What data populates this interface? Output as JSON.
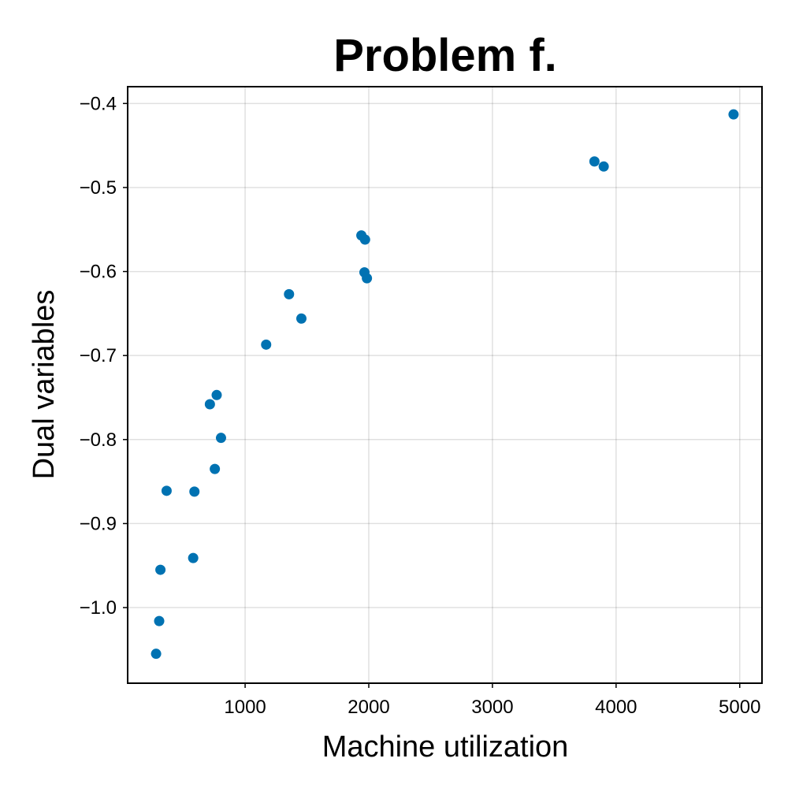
{
  "chart_data": {
    "type": "scatter",
    "title": "Problem f.",
    "xlabel": "Machine utilization",
    "ylabel": "Dual variables",
    "xlim": [
      50,
      5180
    ],
    "ylim": [
      -1.09,
      -0.38
    ],
    "xticks": [
      1000,
      2000,
      3000,
      4000,
      5000
    ],
    "xtick_labels": [
      "1000",
      "2000",
      "3000",
      "4000",
      "5000"
    ],
    "yticks": [
      -0.4,
      -0.5,
      -0.6,
      -0.7,
      -0.8,
      -0.9,
      -1.0
    ],
    "ytick_labels": [
      "−0.4",
      "−0.5",
      "−0.6",
      "−0.7",
      "−0.8",
      "−0.9",
      "−1.0"
    ],
    "grid": true,
    "marker_color": "#0072b2",
    "points": [
      {
        "x": 4950,
        "y": -0.413
      },
      {
        "x": 3825,
        "y": -0.469
      },
      {
        "x": 3900,
        "y": -0.475
      },
      {
        "x": 1940,
        "y": -0.557
      },
      {
        "x": 1970,
        "y": -0.562
      },
      {
        "x": 1965,
        "y": -0.601
      },
      {
        "x": 1985,
        "y": -0.608
      },
      {
        "x": 1355,
        "y": -0.627
      },
      {
        "x": 1455,
        "y": -0.656
      },
      {
        "x": 1170,
        "y": -0.687
      },
      {
        "x": 770,
        "y": -0.747
      },
      {
        "x": 715,
        "y": -0.758
      },
      {
        "x": 805,
        "y": -0.798
      },
      {
        "x": 755,
        "y": -0.835
      },
      {
        "x": 365,
        "y": -0.861
      },
      {
        "x": 590,
        "y": -0.862
      },
      {
        "x": 580,
        "y": -0.941
      },
      {
        "x": 315,
        "y": -0.955
      },
      {
        "x": 305,
        "y": -1.016
      },
      {
        "x": 280,
        "y": -1.055
      }
    ]
  }
}
